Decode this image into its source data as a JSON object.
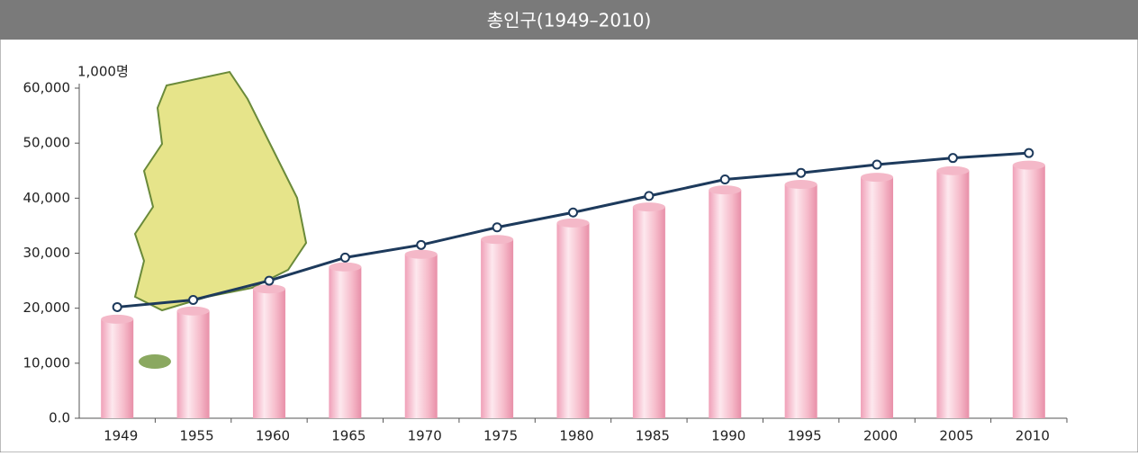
{
  "chart_data": {
    "type": "bar-line",
    "title": "총인구(1949–2010)",
    "y_unit": "1,000명",
    "categories": [
      "1949",
      "1955",
      "1960",
      "1965",
      "1970",
      "1975",
      "1980",
      "1985",
      "1990",
      "1995",
      "2000",
      "2005",
      "2010"
    ],
    "series": [
      {
        "type": "bar",
        "color": "#f4b8c8",
        "values": [
          18000,
          19500,
          23500,
          27500,
          29800,
          32500,
          35500,
          38400,
          41500,
          42500,
          43800,
          45000,
          46000
        ]
      },
      {
        "type": "line",
        "color": "#1d3a5c",
        "values": [
          20200,
          21500,
          25000,
          29200,
          31500,
          34700,
          37400,
          40400,
          43400,
          44600,
          46100,
          47300,
          48200
        ]
      }
    ],
    "ylim": [
      0,
      60000
    ],
    "yticks": [
      {
        "value": 0,
        "label": "0.0"
      },
      {
        "value": 10000,
        "label": "10,000"
      },
      {
        "value": 20000,
        "label": "20,000"
      },
      {
        "value": 30000,
        "label": "30,000"
      },
      {
        "value": 40000,
        "label": "40,000"
      },
      {
        "value": 50000,
        "label": "50,000"
      },
      {
        "value": 60000,
        "label": "60,000"
      }
    ]
  }
}
